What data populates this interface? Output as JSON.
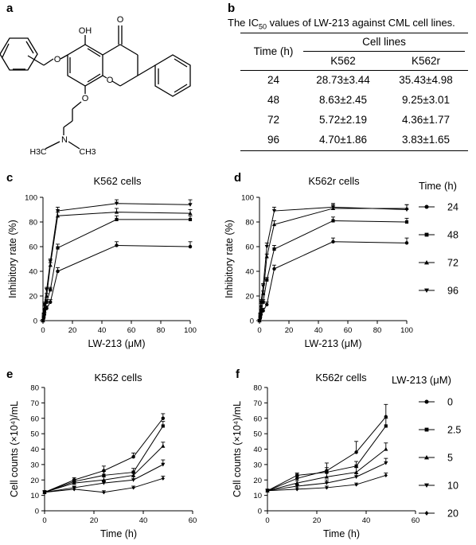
{
  "panels": {
    "a": {
      "letter": "a"
    },
    "b": {
      "letter": "b"
    },
    "c": {
      "letter": "c"
    },
    "d": {
      "letter": "d"
    },
    "e": {
      "letter": "e"
    },
    "f": {
      "letter": "f"
    }
  },
  "molecule": {
    "atom_labels": [
      "OH",
      "O",
      "O",
      "O",
      "O",
      "N",
      "H3C",
      "CH3"
    ]
  },
  "ic50_table": {
    "caption_prefix": "The IC",
    "caption_sub": "50",
    "caption_suffix": " values of LW-213 against CML cell lines.",
    "group_header": "Cell lines",
    "row_header": "Time (h)",
    "columns": [
      "K562",
      "K562r"
    ],
    "rows": [
      {
        "time": "24",
        "k562": "28.73±3.44",
        "k562r": "35.43±4.98"
      },
      {
        "time": "48",
        "k562": "8.63±2.45",
        "k562r": "9.25±3.01"
      },
      {
        "time": "72",
        "k562": "5.72±2.19",
        "k562r": "4.36±1.77"
      },
      {
        "time": "96",
        "k562": "4.70±1.86",
        "k562r": "3.83±1.65"
      }
    ]
  },
  "legend_time": {
    "title": "Time (h)",
    "items": [
      {
        "label": "24",
        "marker": "circle"
      },
      {
        "label": "48",
        "marker": "square"
      },
      {
        "label": "72",
        "marker": "triangle-up"
      },
      {
        "label": "96",
        "marker": "triangle-down"
      }
    ]
  },
  "legend_conc": {
    "title": "LW-213 (μM)",
    "items": [
      {
        "label": "0",
        "marker": "circle"
      },
      {
        "label": "2.5",
        "marker": "square"
      },
      {
        "label": "5",
        "marker": "triangle-up"
      },
      {
        "label": "10",
        "marker": "triangle-down"
      },
      {
        "label": "20",
        "marker": "diamond"
      }
    ]
  },
  "chart_data": [
    {
      "id": "c",
      "type": "line",
      "title": "K562 cells",
      "xlabel": "LW-213 (μM)",
      "ylabel": "Inhibitory rate (%)",
      "xlim": [
        0,
        100
      ],
      "ylim": [
        0,
        100
      ],
      "xticks": [
        0,
        20,
        40,
        60,
        80,
        100
      ],
      "yticks": [
        0,
        20,
        40,
        60,
        80,
        100
      ],
      "grid": false,
      "series": [
        {
          "marker": "circle",
          "x": [
            0,
            0.5,
            1,
            2.5,
            5,
            10,
            50,
            100
          ],
          "y": [
            0,
            2,
            5,
            10,
            15,
            40,
            61,
            60
          ],
          "err": [
            1,
            1,
            1.5,
            2,
            2,
            3,
            3,
            4
          ]
        },
        {
          "marker": "square",
          "x": [
            0,
            0.5,
            1,
            2.5,
            5,
            10,
            50,
            100
          ],
          "y": [
            0,
            3,
            8,
            15,
            25,
            59,
            82,
            82
          ],
          "err": [
            1,
            1,
            1.5,
            2,
            2,
            3,
            3,
            3
          ]
        },
        {
          "marker": "triangle-up",
          "x": [
            0,
            0.5,
            1,
            2.5,
            5,
            10,
            50,
            100
          ],
          "y": [
            0,
            4,
            10,
            20,
            45,
            85,
            88,
            87
          ],
          "err": [
            1,
            1,
            2,
            2,
            2,
            3,
            3,
            3
          ]
        },
        {
          "marker": "triangle-down",
          "x": [
            0,
            0.5,
            1,
            2.5,
            5,
            10,
            50,
            100
          ],
          "y": [
            0,
            5,
            13,
            25,
            48,
            89,
            95,
            94
          ],
          "err": [
            1,
            1,
            2,
            2,
            2,
            3,
            3,
            4
          ]
        }
      ]
    },
    {
      "id": "d",
      "type": "line",
      "title": "K562r cells",
      "xlabel": "LW-213 (μM)",
      "ylabel": "Inhibitory rate (%)",
      "xlim": [
        0,
        100
      ],
      "ylim": [
        0,
        100
      ],
      "xticks": [
        0,
        20,
        40,
        60,
        80,
        100
      ],
      "yticks": [
        0,
        20,
        40,
        60,
        80,
        100
      ],
      "grid": false,
      "series": [
        {
          "marker": "circle",
          "x": [
            0,
            0.5,
            1,
            2.5,
            5,
            10,
            50,
            100
          ],
          "y": [
            0,
            2,
            5,
            8,
            13,
            42,
            64,
            63
          ],
          "err": [
            1,
            1,
            1.5,
            2,
            2,
            3,
            3,
            4
          ]
        },
        {
          "marker": "square",
          "x": [
            0,
            0.5,
            1,
            2.5,
            5,
            10,
            50,
            100
          ],
          "y": [
            0,
            3,
            8,
            15,
            33,
            58,
            81,
            80
          ],
          "err": [
            1,
            1,
            1.5,
            2,
            2,
            3,
            3,
            3
          ]
        },
        {
          "marker": "triangle-up",
          "x": [
            0,
            0.5,
            1,
            2.5,
            5,
            10,
            50,
            100
          ],
          "y": [
            0,
            4,
            12,
            22,
            52,
            78,
            91,
            91
          ],
          "err": [
            1,
            1,
            2,
            2,
            2,
            3,
            3,
            3
          ]
        },
        {
          "marker": "triangle-down",
          "x": [
            0,
            0.5,
            1,
            2.5,
            5,
            10,
            50,
            100
          ],
          "y": [
            0,
            5,
            15,
            28,
            60,
            89,
            92,
            90
          ],
          "err": [
            1,
            1,
            2,
            2,
            3,
            3,
            3,
            4
          ]
        }
      ]
    },
    {
      "id": "e",
      "type": "line",
      "title": "K562 cells",
      "xlabel": "Time (h)",
      "ylabel": "Cell counts (×10⁴)/mL",
      "xlim": [
        0,
        60
      ],
      "ylim": [
        0,
        80
      ],
      "xticks": [
        0,
        20,
        40,
        60
      ],
      "yticks": [
        0,
        10,
        20,
        30,
        40,
        50,
        60,
        70,
        80
      ],
      "grid": false,
      "series": [
        {
          "marker": "circle",
          "x": [
            0,
            12,
            24,
            36,
            48
          ],
          "y": [
            12,
            20,
            26,
            35,
            60
          ],
          "err": [
            1,
            1.5,
            3,
            2.5,
            3
          ]
        },
        {
          "marker": "square",
          "x": [
            0,
            12,
            24,
            36,
            48
          ],
          "y": [
            12,
            19,
            23,
            25,
            55
          ],
          "err": [
            1,
            1.5,
            2.5,
            2.5,
            3
          ]
        },
        {
          "marker": "triangle-up",
          "x": [
            0,
            12,
            24,
            36,
            48
          ],
          "y": [
            12,
            18,
            20,
            23,
            42
          ],
          "err": [
            1,
            1,
            2,
            2,
            2.5
          ]
        },
        {
          "marker": "triangle-down",
          "x": [
            0,
            12,
            24,
            36,
            48
          ],
          "y": [
            12,
            15,
            18,
            20,
            30
          ],
          "err": [
            1,
            1,
            1.5,
            2,
            3
          ]
        },
        {
          "marker": "diamond",
          "x": [
            0,
            12,
            24,
            36,
            48
          ],
          "y": [
            12,
            14,
            12,
            15,
            21
          ],
          "err": [
            1,
            1,
            1,
            1,
            1.5
          ]
        }
      ]
    },
    {
      "id": "f",
      "type": "line",
      "title": "K562r cells",
      "xlabel": "Time (h)",
      "ylabel": "Cell counts (×10⁴)/mL",
      "xlim": [
        0,
        60
      ],
      "ylim": [
        0,
        80
      ],
      "xticks": [
        0,
        20,
        40,
        60
      ],
      "yticks": [
        0,
        10,
        20,
        30,
        40,
        50,
        60,
        70,
        80
      ],
      "grid": false,
      "series": [
        {
          "marker": "circle",
          "x": [
            0,
            12,
            24,
            36,
            48
          ],
          "y": [
            13,
            21,
            26,
            38,
            61
          ],
          "err": [
            1,
            1.5,
            5,
            7,
            8
          ]
        },
        {
          "marker": "square",
          "x": [
            0,
            12,
            24,
            36,
            48
          ],
          "y": [
            13,
            23,
            25,
            29,
            55
          ],
          "err": [
            1,
            1.5,
            3,
            3,
            5
          ]
        },
        {
          "marker": "triangle-up",
          "x": [
            0,
            12,
            24,
            36,
            48
          ],
          "y": [
            13,
            18,
            22,
            25,
            40
          ],
          "err": [
            1,
            1.5,
            3,
            3,
            4
          ]
        },
        {
          "marker": "triangle-down",
          "x": [
            0,
            12,
            24,
            36,
            48
          ],
          "y": [
            13,
            16,
            18,
            22,
            31
          ],
          "err": [
            1,
            1,
            2,
            2,
            3
          ]
        },
        {
          "marker": "diamond",
          "x": [
            0,
            12,
            24,
            36,
            48
          ],
          "y": [
            13,
            14,
            15,
            17,
            23
          ],
          "err": [
            1,
            1,
            1,
            1,
            1.5
          ]
        }
      ]
    }
  ]
}
